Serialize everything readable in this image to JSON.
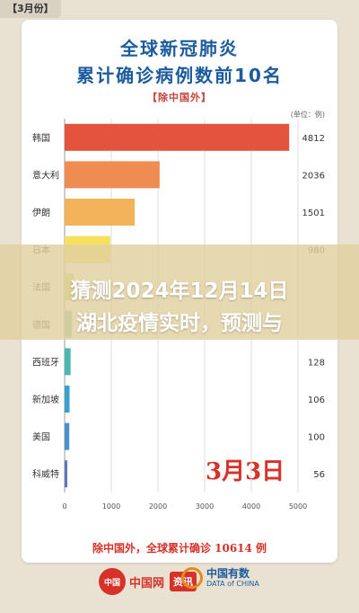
{
  "corner_tag": "【3月份】",
  "banner": {
    "line1": "猜测2024年12月14日",
    "line2": "湖北疫情实时，预测与"
  },
  "date_stamp": "3月3日",
  "footnote": "除中国外，全球累计确诊 10614 例",
  "logos": {
    "left_seal": "中国",
    "left_name": "中国网",
    "left_badge": "资讯",
    "right_cn": "中国有数",
    "right_en": "DATA of CHINA"
  },
  "colors": {
    "title": "#1b5b9e",
    "accent": "#d6322a"
  },
  "chart_data": {
    "type": "bar",
    "orientation": "horizontal",
    "title": "全球新冠肺炎",
    "subtitle": "累计确诊病例数前10名",
    "note": "【除中国外】",
    "unit": "(单位：例)",
    "categories": [
      "韩国",
      "意大利",
      "伊朗",
      "日本",
      "法国",
      "德国",
      "西班牙",
      "新加坡",
      "美国",
      "科威特"
    ],
    "values": [
      4812,
      2036,
      1501,
      980,
      191,
      159,
      128,
      106,
      100,
      56
    ],
    "value_labels": [
      "4812",
      "2036",
      "1501",
      "980",
      "",
      "",
      "128",
      "106",
      "100",
      "56"
    ],
    "bar_colors": [
      "#e4533d",
      "#ef8c52",
      "#f3b35a",
      "#f6e15e",
      "#c9d96b",
      "#7ec8a0",
      "#4bb7b0",
      "#3aa0cf",
      "#4f8fc9",
      "#5b78b8"
    ],
    "xticks": [
      "0",
      "1000",
      "2000",
      "3000",
      "4000",
      "5000"
    ],
    "xlim": [
      0,
      5000
    ],
    "grid": true
  }
}
